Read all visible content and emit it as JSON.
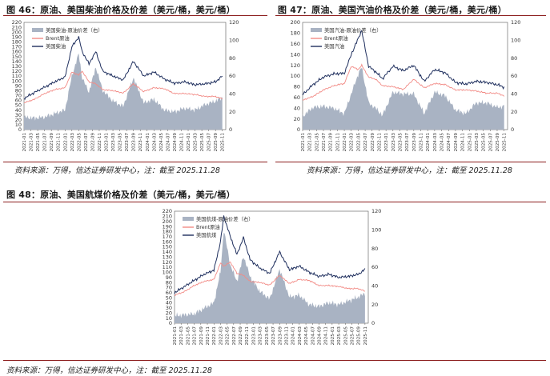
{
  "figures": [
    {
      "title": "图 46：原油、美国柴油价格及价差（美元/桶，美元/桶）",
      "source": "资料来源：万得，信达证券研发中心，注：截至 2025.11.28"
    },
    {
      "title": "图 47：原油、美国汽油价格及价差（美元/桶，美元/桶）",
      "source": "资料来源：万得，信达证券研发中心，注：截至 2025.11.28"
    },
    {
      "title": "图 48：原油、美国航煤价格及价差（美元/桶，美元/桶）",
      "source": "资料来源：万得，信达证券研发中心，注：截至 2025.11.28"
    }
  ],
  "colors": {
    "spread": "#a9b3c3",
    "brent": "#f28b86",
    "product": "#1f2f5e",
    "rule": "#8c1d1d"
  },
  "chart_data": [
    {
      "type": "area+line",
      "left_ylim": [
        0,
        220
      ],
      "right_ylim": [
        0,
        120
      ],
      "left_ticks": [
        0,
        10,
        20,
        30,
        40,
        50,
        60,
        70,
        80,
        90,
        100,
        110,
        120,
        130,
        140,
        150,
        160,
        170,
        180,
        190,
        200,
        210,
        220
      ],
      "right_ticks": [
        0,
        20,
        40,
        60,
        80,
        100,
        120
      ],
      "x_ticks": [
        "2021-01",
        "2021-03",
        "2021-05",
        "2021-07",
        "2021-09",
        "2021-11",
        "2022-01",
        "2022-03",
        "2022-05",
        "2022-07",
        "2022-09",
        "2022-11",
        "2023-01",
        "2023-03",
        "2023-05",
        "2023-07",
        "2023-09",
        "2023-11",
        "2024-01",
        "2024-03",
        "2024-05",
        "2024-07",
        "2024-09",
        "2024-11",
        "2025-01",
        "2025-03",
        "2025-05",
        "2025-07",
        "2025-09",
        "2025-11"
      ],
      "legend": [
        "美国柴油-原油价差（右）",
        "Brent原油",
        "美国柴油"
      ],
      "legend_position": "top-left",
      "x": [
        "2021-01",
        "2021-04",
        "2021-07",
        "2021-10",
        "2022-01",
        "2022-03",
        "2022-05",
        "2022-06",
        "2022-08",
        "2022-10",
        "2022-12",
        "2023-03",
        "2023-06",
        "2023-09",
        "2023-12",
        "2024-03",
        "2024-06",
        "2024-09",
        "2024-12",
        "2025-03",
        "2025-06",
        "2025-09",
        "2025-11"
      ],
      "series": [
        {
          "name": "美国柴油-原油价差（右）",
          "axis": "right",
          "values": [
            14,
            13,
            14,
            18,
            22,
            60,
            85,
            58,
            42,
            70,
            44,
            32,
            26,
            58,
            30,
            34,
            22,
            20,
            24,
            22,
            28,
            32,
            36
          ]
        },
        {
          "name": "Brent原油",
          "axis": "left",
          "values": [
            55,
            62,
            74,
            82,
            86,
            118,
            112,
            120,
            98,
            94,
            82,
            80,
            75,
            94,
            78,
            86,
            84,
            74,
            74,
            72,
            68,
            68,
            63
          ]
        },
        {
          "name": "美国柴油",
          "axis": "left",
          "values": [
            64,
            76,
            87,
            98,
            108,
            170,
            190,
            160,
            135,
            160,
            120,
            110,
            102,
            140,
            110,
            118,
            104,
            95,
            98,
            92,
            94,
            98,
            110
          ]
        }
      ]
    },
    {
      "type": "area+line",
      "left_ylim": [
        0,
        200
      ],
      "right_ylim": [
        0,
        120
      ],
      "left_ticks": [
        0,
        20,
        40,
        60,
        80,
        100,
        120,
        140,
        160,
        180,
        200
      ],
      "right_ticks": [
        0,
        20,
        40,
        60,
        80,
        100,
        120
      ],
      "x_ticks": [
        "2021-01",
        "2021-03",
        "2021-05",
        "2021-07",
        "2021-09",
        "2021-11",
        "2022-01",
        "2022-03",
        "2022-05",
        "2022-07",
        "2022-09",
        "2022-11",
        "2023-01",
        "2023-03",
        "2023-05",
        "2023-07",
        "2023-09",
        "2023-11",
        "2024-01",
        "2024-03",
        "2024-05",
        "2024-07",
        "2024-09",
        "2024-11",
        "2025-01",
        "2025-03",
        "2025-05",
        "2025-07",
        "2025-09",
        "2025-11"
      ],
      "legend": [
        "美国汽油-原油价差（右）",
        "Brent原油",
        "美国汽油"
      ],
      "legend_position": "top-left",
      "x": [
        "2021-01",
        "2021-04",
        "2021-07",
        "2021-10",
        "2022-01",
        "2022-03",
        "2022-05",
        "2022-06",
        "2022-08",
        "2022-10",
        "2022-12",
        "2023-03",
        "2023-06",
        "2023-09",
        "2023-12",
        "2024-03",
        "2024-06",
        "2024-09",
        "2024-12",
        "2025-03",
        "2025-06",
        "2025-09",
        "2025-11"
      ],
      "series": [
        {
          "name": "美国汽油-原油价差（右）",
          "axis": "right",
          "values": [
            15,
            25,
            26,
            24,
            18,
            40,
            62,
            70,
            30,
            24,
            16,
            42,
            40,
            40,
            18,
            42,
            38,
            22,
            18,
            30,
            30,
            25,
            26
          ]
        },
        {
          "name": "Brent原油",
          "axis": "left",
          "values": [
            55,
            62,
            74,
            82,
            86,
            118,
            112,
            120,
            98,
            94,
            82,
            80,
            75,
            94,
            78,
            86,
            84,
            74,
            74,
            72,
            68,
            68,
            63
          ]
        },
        {
          "name": "美国汽油",
          "axis": "left",
          "values": [
            65,
            84,
            98,
            104,
            105,
            140,
            170,
            185,
            118,
            108,
            95,
            118,
            110,
            120,
            90,
            112,
            106,
            88,
            85,
            90,
            88,
            84,
            79
          ]
        }
      ]
    },
    {
      "type": "area+line",
      "left_ylim": [
        0,
        220
      ],
      "right_ylim": [
        0,
        120
      ],
      "left_ticks": [
        0,
        10,
        20,
        30,
        40,
        50,
        60,
        70,
        80,
        90,
        100,
        110,
        120,
        130,
        140,
        150,
        160,
        170,
        180,
        190,
        200,
        210,
        220
      ],
      "right_ticks": [
        0,
        20,
        40,
        60,
        80,
        100,
        120
      ],
      "x_ticks": [
        "2021-01",
        "2021-03",
        "2021-05",
        "2021-07",
        "2021-09",
        "2021-11",
        "2022-01",
        "2022-03",
        "2022-05",
        "2022-07",
        "2022-09",
        "2022-11",
        "2023-01",
        "2023-03",
        "2023-05",
        "2023-07",
        "2023-09",
        "2023-11",
        "2024-01",
        "2024-03",
        "2024-05",
        "2024-07",
        "2024-09",
        "2024-11",
        "2025-01",
        "2025-03",
        "2025-05",
        "2025-07",
        "2025-09",
        "2025-11"
      ],
      "legend": [
        "美国航煤-原油价差（右）",
        "Brent原油",
        "美国航煤"
      ],
      "legend_position": "top-left",
      "x": [
        "2021-01",
        "2021-04",
        "2021-07",
        "2021-10",
        "2022-01",
        "2022-03",
        "2022-04",
        "2022-06",
        "2022-08",
        "2022-10",
        "2022-12",
        "2023-03",
        "2023-06",
        "2023-09",
        "2023-12",
        "2024-03",
        "2024-06",
        "2024-09",
        "2024-12",
        "2025-03",
        "2025-06",
        "2025-09",
        "2025-11"
      ],
      "series": [
        {
          "name": "美国航煤-原油价差（右）",
          "axis": "right",
          "values": [
            8,
            9,
            10,
            16,
            22,
            55,
            100,
            62,
            45,
            72,
            50,
            34,
            26,
            58,
            28,
            30,
            20,
            18,
            22,
            20,
            24,
            28,
            32
          ]
        },
        {
          "name": "Brent原油",
          "axis": "left",
          "values": [
            55,
            62,
            74,
            82,
            86,
            118,
            112,
            120,
            98,
            94,
            82,
            80,
            75,
            94,
            78,
            86,
            84,
            74,
            74,
            72,
            68,
            68,
            63
          ]
        },
        {
          "name": "美国航煤",
          "axis": "left",
          "values": [
            60,
            72,
            84,
            96,
            104,
            160,
            210,
            170,
            135,
            168,
            125,
            108,
            98,
            140,
            105,
            112,
            100,
            92,
            96,
            90,
            92,
            96,
            106
          ]
        }
      ]
    }
  ]
}
